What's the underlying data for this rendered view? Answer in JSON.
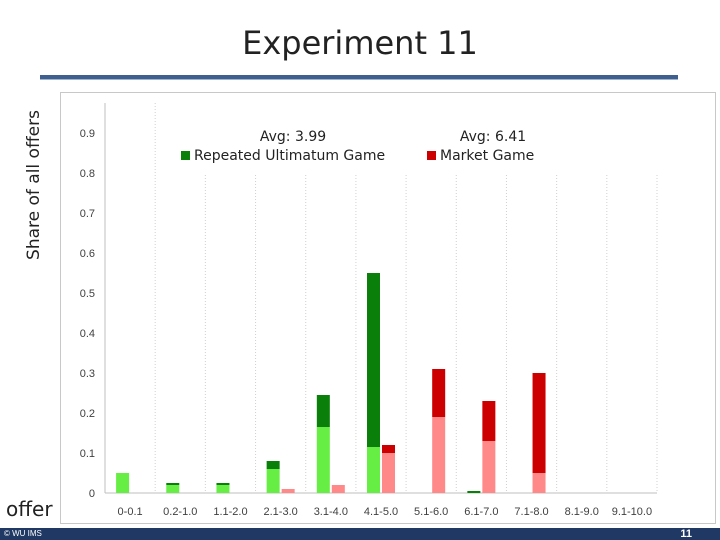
{
  "slide": {
    "title": "Experiment 11",
    "footer_left": "© WU IMS",
    "page_number": "11"
  },
  "chart_data": {
    "type": "bar",
    "ylabel": "Share of all offers",
    "xlabel": "offer",
    "categories": [
      "0-0.1",
      "0.2-1.0",
      "1.1-2.0",
      "2.1-3.0",
      "3.1-4.0",
      "4.1-5.0",
      "5.1-6.0",
      "6.1-7.0",
      "7.1-8.0",
      "8.1-9.0",
      "9.1-10.0"
    ],
    "ylim": [
      0,
      0.95
    ],
    "yticks": [
      "0",
      "0.1",
      "0.2",
      "0.3",
      "0.4",
      "0.5",
      "0.6",
      "0.7",
      "0.8",
      "0.9"
    ],
    "legend_placement": "top",
    "series": [
      {
        "name": "Repeated Ultimatum Game",
        "avg_label": "Avg: 3.99",
        "color_dark": "#0a7f0a",
        "color_light": "#66ee44",
        "values": [
          0.05,
          0.025,
          0.025,
          0.08,
          0.245,
          0.55,
          0.0,
          0.005,
          0.0,
          0.0,
          0.0
        ],
        "lower_values": [
          0.05,
          0.02,
          0.02,
          0.06,
          0.165,
          0.115,
          0.0,
          0.0,
          0.0,
          0.0,
          0.0
        ]
      },
      {
        "name": "Market Game",
        "avg_label": "Avg: 6.41",
        "color_dark": "#cc0000",
        "color_light": "#ff8888",
        "values": [
          0.0,
          0.0,
          0.0,
          0.01,
          0.02,
          0.12,
          0.31,
          0.23,
          0.3,
          0.0,
          0.0
        ],
        "lower_values": [
          0.0,
          0.0,
          0.0,
          0.01,
          0.02,
          0.1,
          0.19,
          0.13,
          0.05,
          0.0,
          0.0
        ]
      }
    ],
    "grid": false,
    "category_separators": true
  }
}
